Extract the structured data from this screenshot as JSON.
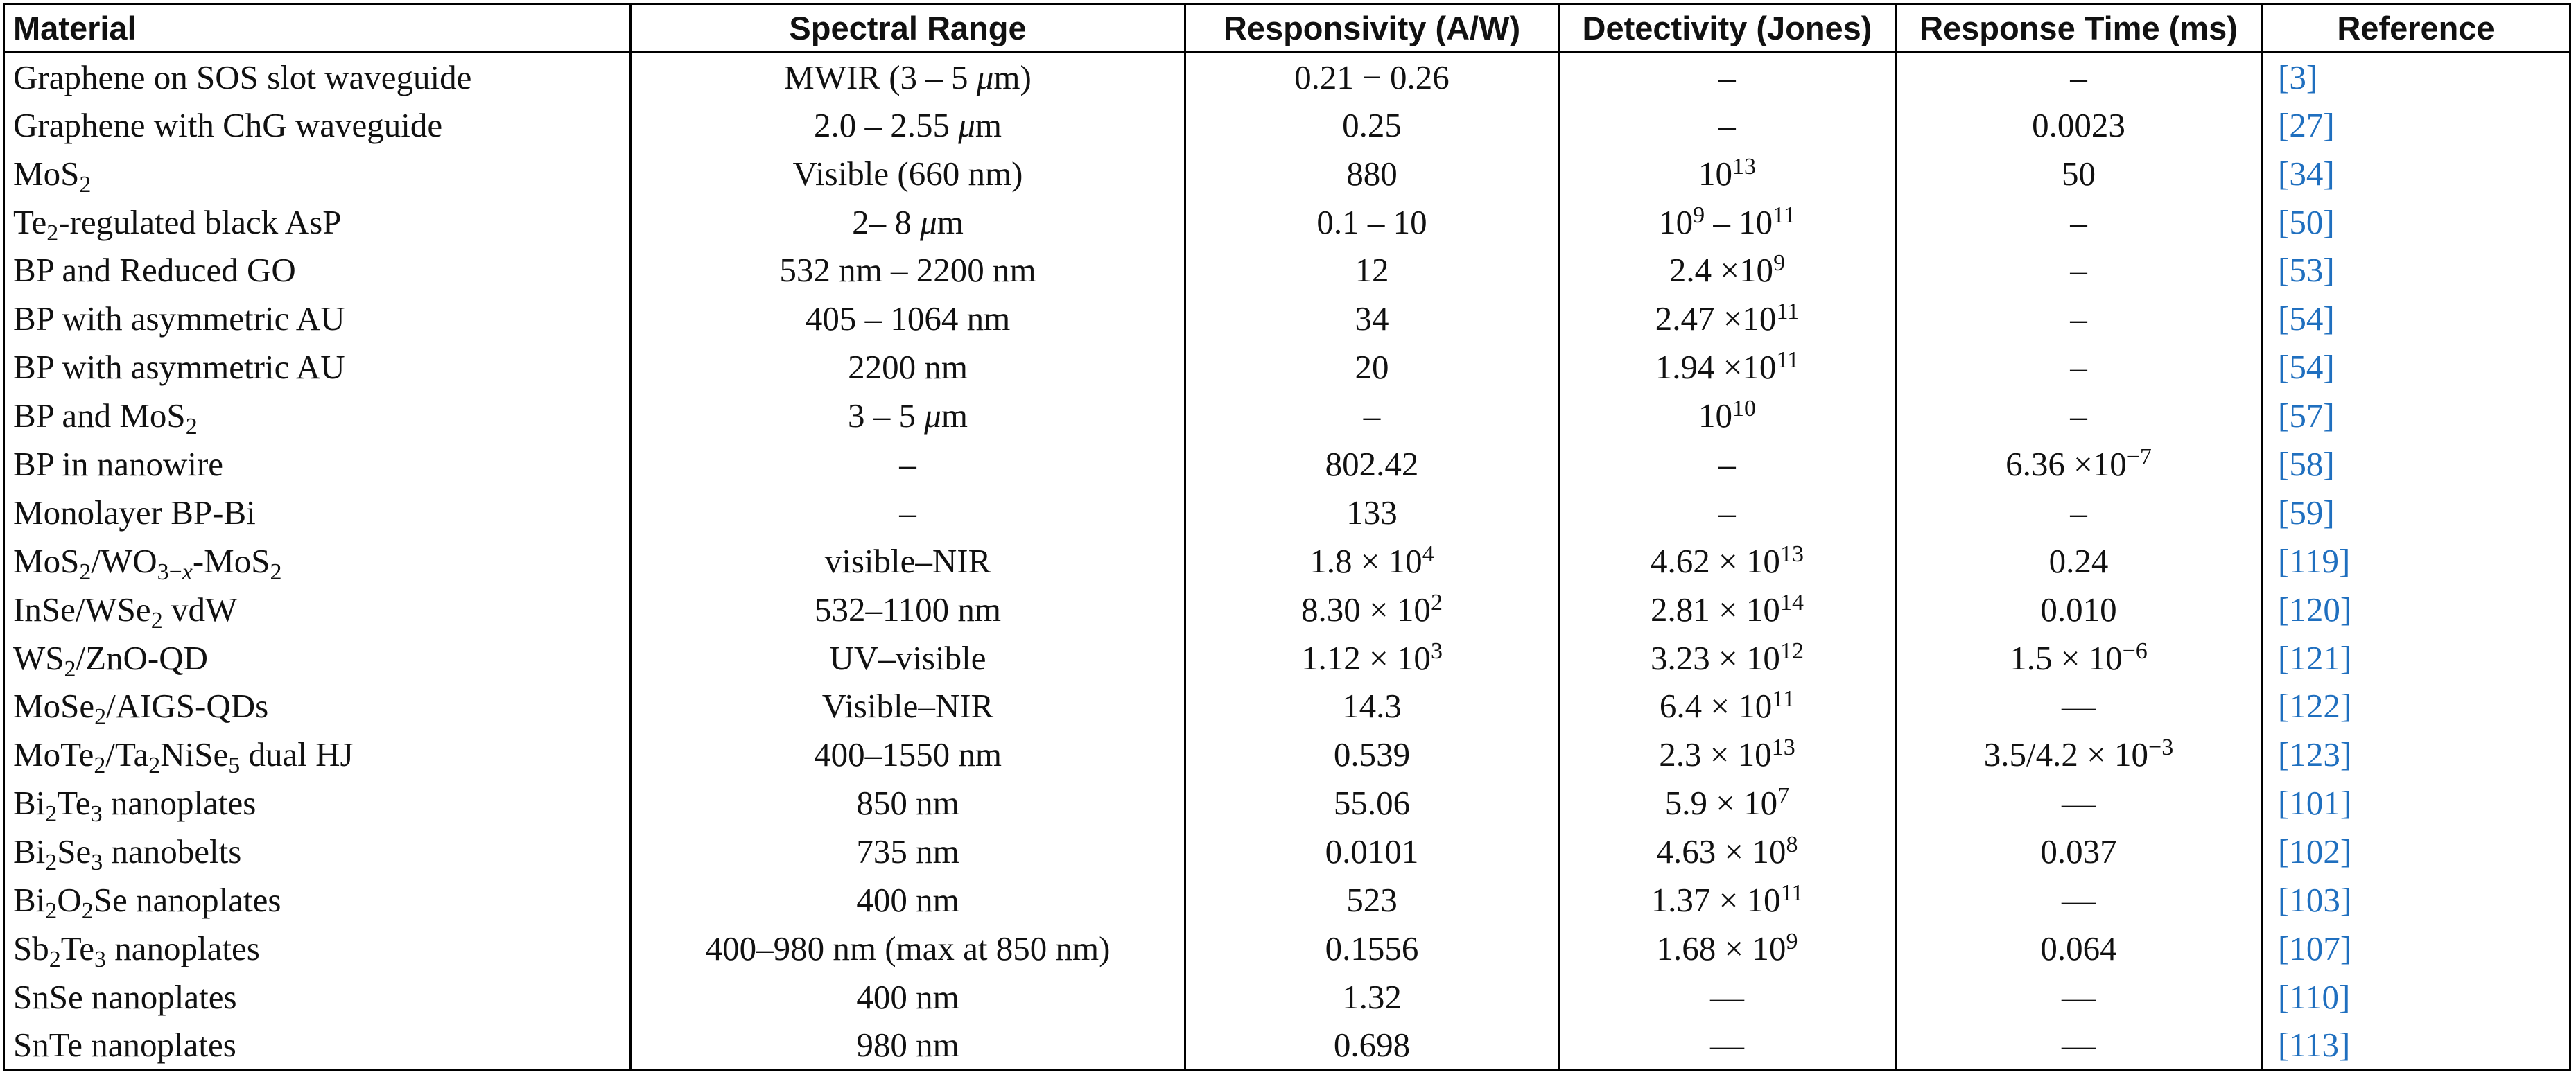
{
  "table": {
    "headers": {
      "material": "Material",
      "spectral_range": "Spectral Range",
      "responsivity": "Responsivity (A/W)",
      "detectivity": "Detectivity (Jones)",
      "response_time": "Response Time (ms)",
      "reference": "Reference"
    },
    "rows": [
      {
        "material": "Graphene on SOS slot waveguide",
        "spectral_range": "MWIR (3 – 5 μm)",
        "responsivity": "0.21 − 0.26",
        "detectivity": "–",
        "response_time": "–",
        "reference": "3"
      },
      {
        "material": "Graphene with ChG waveguide",
        "spectral_range": "2.0 – 2.55 μm",
        "responsivity": "0.25",
        "detectivity": "–",
        "response_time": "0.0023",
        "reference": "27"
      },
      {
        "material": "MoS₂",
        "spectral_range": "Visible (660 nm)",
        "responsivity": "880",
        "detectivity": "10¹³",
        "response_time": "50",
        "reference": "34"
      },
      {
        "material": "Te₂-regulated black AsP",
        "spectral_range": "2– 8 μm",
        "responsivity": "0.1 – 10",
        "detectivity": "10⁹ – 10¹¹",
        "response_time": "–",
        "reference": "50"
      },
      {
        "material": "BP and Reduced GO",
        "spectral_range": "532 nm – 2200 nm",
        "responsivity": "12",
        "detectivity": "2.4 ×10⁹",
        "response_time": "–",
        "reference": "53"
      },
      {
        "material": "BP with asymmetric AU",
        "spectral_range": "405 – 1064 nm",
        "responsivity": "34",
        "detectivity": "2.47 ×10¹¹",
        "response_time": "–",
        "reference": "54"
      },
      {
        "material": "BP with asymmetric AU",
        "spectral_range": "2200 nm",
        "responsivity": "20",
        "detectivity": "1.94 ×10¹¹",
        "response_time": "–",
        "reference": "54"
      },
      {
        "material": "BP and MoS₂",
        "spectral_range": "3 – 5 μm",
        "responsivity": "–",
        "detectivity": "10¹⁰",
        "response_time": "–",
        "reference": "57"
      },
      {
        "material": "BP in nanowire",
        "spectral_range": "–",
        "responsivity": "802.42",
        "detectivity": "–",
        "response_time": "6.36 ×10⁻⁷",
        "reference": "58"
      },
      {
        "material": "Monolayer BP-Bi",
        "spectral_range": "–",
        "responsivity": "133",
        "detectivity": "–",
        "response_time": "–",
        "reference": "59"
      },
      {
        "material": "MoS₂/WO₃₋ₓ-MoS₂",
        "spectral_range": "visible–NIR",
        "responsivity": "1.8 × 10⁴",
        "detectivity": "4.62 × 10¹³",
        "response_time": "0.24",
        "reference": "119"
      },
      {
        "material": "InSe/WSe₂ vdW",
        "spectral_range": "532–1100 nm",
        "responsivity": "8.30 × 10²",
        "detectivity": "2.81 × 10¹⁴",
        "response_time": "0.010",
        "reference": "120"
      },
      {
        "material": "WS₂/ZnO-QD",
        "spectral_range": "UV–visible",
        "responsivity": "1.12 × 10³",
        "detectivity": "3.23 × 10¹²",
        "response_time": "1.5 × 10⁻⁶",
        "reference": "121"
      },
      {
        "material": "MoSe₂/AIGS-QDs",
        "spectral_range": "Visible–NIR",
        "responsivity": "14.3",
        "detectivity": "6.4 × 10¹¹",
        "response_time": "—",
        "reference": "122"
      },
      {
        "material": "MoTe₂/Ta₂NiSe₅ dual HJ",
        "spectral_range": "400–1550 nm",
        "responsivity": "0.539",
        "detectivity": "2.3 × 10¹³",
        "response_time": "3.5/4.2 × 10⁻³",
        "reference": "123"
      },
      {
        "material": "Bi₂Te₃ nanoplates",
        "spectral_range": "850 nm",
        "responsivity": "55.06",
        "detectivity": "5.9 × 10⁷",
        "response_time": "—",
        "reference": "101"
      },
      {
        "material": "Bi₂Se₃ nanobelts",
        "spectral_range": "735 nm",
        "responsivity": "0.0101",
        "detectivity": "4.63 × 10⁸",
        "response_time": "0.037",
        "reference": "102"
      },
      {
        "material": "Bi₂O₂Se nanoplates",
        "spectral_range": "400 nm",
        "responsivity": "523",
        "detectivity": "1.37 × 10¹¹",
        "response_time": "—",
        "reference": "103"
      },
      {
        "material": "Sb₂Te₃ nanoplates",
        "spectral_range": "400–980 nm (max at 850 nm)",
        "responsivity": "0.1556",
        "detectivity": "1.68 × 10⁹",
        "response_time": "0.064",
        "reference": "107"
      },
      {
        "material": "SnSe nanoplates",
        "spectral_range": "400 nm",
        "responsivity": "1.32",
        "detectivity": "—",
        "response_time": "—",
        "reference": "110"
      },
      {
        "material": "SnTe nanoplates",
        "spectral_range": "980 nm",
        "responsivity": "0.698",
        "detectivity": "—",
        "response_time": "—",
        "reference": "113"
      }
    ]
  },
  "colors": {
    "link": "#1f6fbf",
    "text": "#111111",
    "rule": "#000000"
  }
}
